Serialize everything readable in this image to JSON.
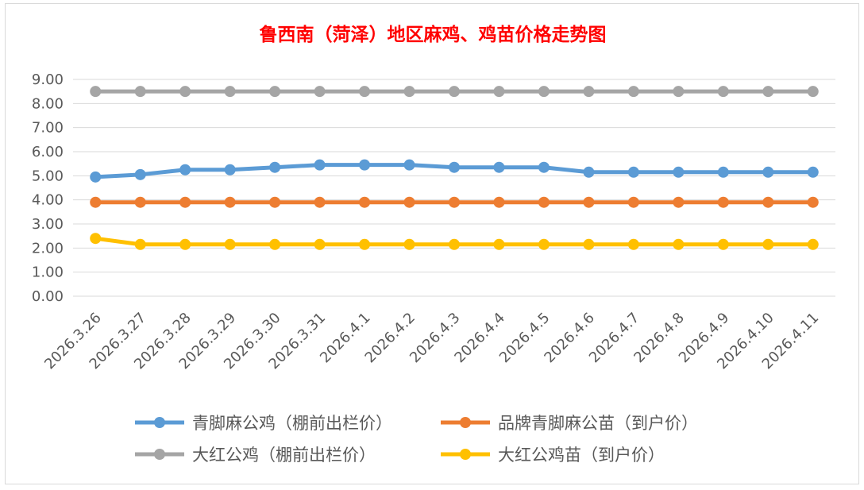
{
  "chart_data": {
    "type": "line",
    "title": "鲁西南（菏泽）地区麻鸡、鸡苗价格走势图",
    "xlabel": "",
    "ylabel": "",
    "ylim": [
      0,
      9
    ],
    "ytick_step": 1,
    "ytick_labels": [
      "0.00",
      "1.00",
      "2.00",
      "3.00",
      "4.00",
      "5.00",
      "6.00",
      "7.00",
      "8.00",
      "9.00"
    ],
    "grid": true,
    "legend_position": "bottom",
    "categories": [
      "2026.3.26",
      "2026.3.27",
      "2026.3.28",
      "2026.3.29",
      "2026.3.30",
      "2026.3.31",
      "2026.4.1",
      "2026.4.2",
      "2026.4.3",
      "2026.4.4",
      "2026.4.5",
      "2026.4.6",
      "2026.4.7",
      "2026.4.8",
      "2026.4.9",
      "2026.4.10",
      "2026.4.11"
    ],
    "series": [
      {
        "name": "青脚麻公鸡（棚前出栏价）",
        "color": "#5b9bd5",
        "values": [
          4.95,
          5.05,
          5.25,
          5.25,
          5.35,
          5.45,
          5.45,
          5.45,
          5.35,
          5.35,
          5.35,
          5.15,
          5.15,
          5.15,
          5.15,
          5.15,
          5.15
        ]
      },
      {
        "name": "品牌青脚麻公苗（到户价）",
        "color": "#ed7d31",
        "values": [
          3.9,
          3.9,
          3.9,
          3.9,
          3.9,
          3.9,
          3.9,
          3.9,
          3.9,
          3.9,
          3.9,
          3.9,
          3.9,
          3.9,
          3.9,
          3.9,
          3.9
        ]
      },
      {
        "name": "大红公鸡（棚前出栏价）",
        "color": "#a5a5a5",
        "values": [
          8.5,
          8.5,
          8.5,
          8.5,
          8.5,
          8.5,
          8.5,
          8.5,
          8.5,
          8.5,
          8.5,
          8.5,
          8.5,
          8.5,
          8.5,
          8.5,
          8.5
        ]
      },
      {
        "name": "大红公鸡苗（到户价）",
        "color": "#ffc000",
        "values": [
          2.4,
          2.15,
          2.15,
          2.15,
          2.15,
          2.15,
          2.15,
          2.15,
          2.15,
          2.15,
          2.15,
          2.15,
          2.15,
          2.15,
          2.15,
          2.15,
          2.15
        ]
      }
    ],
    "title_color": "#ff0000",
    "grid_color": "#d9d9d9",
    "axis_text_color": "#595959"
  }
}
